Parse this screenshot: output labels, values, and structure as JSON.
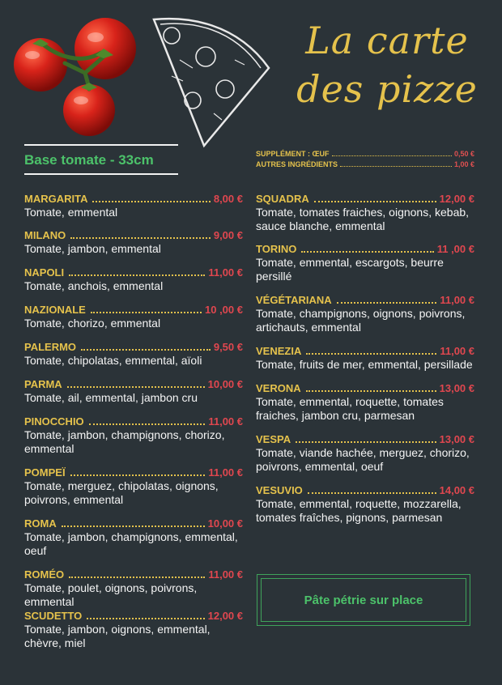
{
  "title": {
    "line1": "La carte",
    "line2": "des pizze"
  },
  "base": "Base tomate - 33cm",
  "supplements": [
    {
      "name": "SUPPLÉMENT : ŒUF",
      "price": "0,50 €"
    },
    {
      "name": "AUTRES INGRÉDIENTS",
      "price": "1,00 €"
    }
  ],
  "left_items": [
    {
      "name": "MARGARITA",
      "price": "8,00 €",
      "desc": "Tomate, emmental"
    },
    {
      "name": "MILANO",
      "price": "9,00 €",
      "desc": "Tomate, jambon, emmental"
    },
    {
      "name": "NAPOLI",
      "price": "11,00 €",
      "desc": "Tomate, anchois, emmental"
    },
    {
      "name": "NAZIONALE",
      "price": "10 ,00 €",
      "desc": "Tomate, chorizo, emmental"
    },
    {
      "name": "PALERMO",
      "price": "9,50 €",
      "desc": "Tomate, chipolatas, emmental, aïoli"
    },
    {
      "name": "PARMA",
      "price": "10,00 €",
      "desc": "Tomate, ail, emmental, jambon cru"
    },
    {
      "name": "PINOCCHIO",
      "price": "11,00 €",
      "desc": "Tomate, jambon, champignons, chorizo, emmental"
    },
    {
      "name": "POMPEÏ",
      "price": "11,00 €",
      "desc": "Tomate, merguez, chipolatas, oignons, poivrons, emmental"
    },
    {
      "name": "ROMA",
      "price": "10,00 €",
      "desc": "Tomate, jambon, champignons, emmental, oeuf"
    },
    {
      "name": "ROMÉO",
      "price": "11,00 €",
      "desc": "Tomate, poulet, oignons, poivrons, emmental"
    },
    {
      "name": "SCUDETTO",
      "price": "12,00 €",
      "desc": "Tomate, jambon, oignons, emmental, chèvre, miel"
    }
  ],
  "right_items": [
    {
      "name": "SQUADRA",
      "price": "12,00 €",
      "desc": "Tomate, tomates fraiches, oignons, kebab, sauce blanche, emmental"
    },
    {
      "name": "TORINO",
      "price": "11 ,00 €",
      "desc": "Tomate, emmental, escargots, beurre persillé"
    },
    {
      "name": "VÉGÉTARIANA",
      "price": "11,00 €",
      "desc": "Tomate, champignons, oignons, poivrons, artichauts, emmental"
    },
    {
      "name": "VENEZIA",
      "price": "11,00 €",
      "desc": "Tomate, fruits de mer, emmental, persillade"
    },
    {
      "name": "VERONA",
      "price": "13,00 €",
      "desc": "Tomate, emmental, roquette, tomates fraiches, jambon cru, parmesan"
    },
    {
      "name": "VESPA",
      "price": "13,00 €",
      "desc": "Tomate, viande hachée, merguez, chorizo, poivrons, emmental, oeuf"
    },
    {
      "name": "VESUVIO",
      "price": "14,00 €",
      "desc": "Tomate, emmental, roquette, mozzarella, tomates fraîches, pignons, parmesan"
    }
  ],
  "note": "Pâte pétrie sur place",
  "colors": {
    "background": "#2b3338",
    "name": "#e5c24c",
    "price": "#e0474f",
    "accent": "#4cc26a"
  }
}
